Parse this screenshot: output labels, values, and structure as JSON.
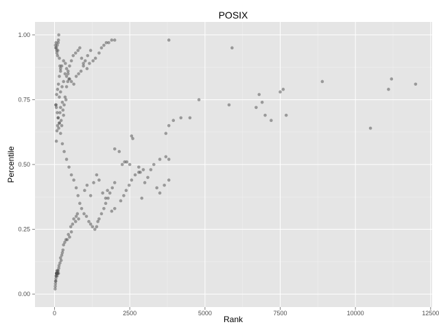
{
  "chart_data": {
    "type": "scatter",
    "title": "POSIX",
    "xlabel": "Rank",
    "ylabel": "Percentile",
    "xlim": [
      -650,
      12550
    ],
    "ylim": [
      -0.05,
      1.05
    ],
    "x_ticks": [
      0,
      2500,
      5000,
      7500,
      10000,
      12500
    ],
    "x_tick_labels": [
      "0",
      "2500",
      "5000",
      "7500",
      "10000",
      "12500"
    ],
    "y_ticks": [
      0.0,
      0.25,
      0.5,
      0.75,
      1.0
    ],
    "y_tick_labels": [
      "0.00",
      "0.25",
      "0.50",
      "0.75",
      "1.00"
    ],
    "grid": true,
    "legend": "none",
    "colors": {
      "panel": "#e5e5e5",
      "grid_major": "#ffffff",
      "grid_minor": "#f2f2f2",
      "point": "#4d4d4d"
    },
    "series": [
      {
        "x": [
          20,
          25,
          30,
          35,
          40,
          45,
          50,
          55,
          60,
          65,
          70,
          75,
          80,
          85,
          90,
          95,
          100,
          110,
          120,
          130,
          140,
          150,
          30,
          40,
          50,
          60,
          70,
          80,
          90,
          100,
          110,
          120,
          130,
          140,
          160,
          180,
          200,
          60,
          80,
          100,
          120,
          140,
          160,
          180,
          200,
          220,
          240,
          260,
          280,
          300,
          320,
          350,
          380,
          400,
          440,
          480,
          180,
          200,
          220,
          240,
          260,
          280,
          300,
          340,
          380,
          420,
          460,
          500,
          540,
          560,
          600,
          640,
          700,
          720,
          760,
          800,
          160,
          200,
          250,
          300,
          350,
          400,
          450,
          500,
          560,
          620,
          700,
          780,
          840,
          900,
          960,
          1020,
          1100,
          1200,
          50,
          70,
          100,
          130,
          160,
          200,
          240,
          300,
          360,
          400,
          450,
          500,
          560,
          640,
          720,
          800,
          880,
          960,
          1080,
          1160,
          1280,
          1360,
          1480,
          1560,
          1640,
          1720,
          1800,
          1900,
          2000,
          40,
          60,
          90,
          120,
          160,
          200,
          260,
          320,
          400,
          480,
          560,
          640,
          720,
          780,
          840,
          900,
          980,
          1060,
          1140,
          1200,
          1260,
          1340,
          1400,
          1440,
          1480,
          1560,
          1640,
          1700,
          1780,
          1840,
          1920,
          2000,
          1000,
          1080,
          1200,
          1300,
          1400,
          1480,
          1600,
          1700,
          1760,
          1900,
          2000,
          2200,
          2300,
          2380,
          2480,
          2560,
          2680,
          2800,
          2900,
          3000,
          3100,
          3200,
          3400,
          3500,
          3650,
          3800,
          2000,
          2150,
          2250,
          2330,
          2400,
          2500,
          2560,
          2600,
          2800,
          2850,
          2950,
          3300,
          3500,
          3700,
          3800,
          3700,
          3800,
          3950,
          4200,
          4500,
          4800,
          5800,
          6700,
          6800,
          6900,
          7000,
          7200,
          7500,
          7600,
          7700,
          3800,
          5900,
          8900,
          10500,
          11100,
          11200,
          12000
        ],
        "y": [
          0.02,
          0.03,
          0.04,
          0.05,
          0.05,
          0.06,
          0.07,
          0.07,
          0.08,
          0.08,
          0.08,
          0.08,
          0.09,
          0.07,
          0.08,
          0.08,
          0.09,
          0.08,
          0.09,
          0.08,
          0.1,
          0.11,
          0.96,
          0.95,
          0.97,
          0.95,
          0.94,
          0.93,
          0.96,
          0.92,
          0.94,
          0.97,
          0.98,
          1.0,
          0.91,
          0.88,
          0.87,
          0.59,
          0.63,
          0.65,
          0.68,
          0.64,
          0.66,
          0.7,
          0.72,
          0.67,
          0.65,
          0.74,
          0.71,
          0.69,
          0.73,
          0.76,
          0.75,
          0.8,
          0.82,
          0.83,
          0.12,
          0.14,
          0.13,
          0.15,
          0.16,
          0.17,
          0.19,
          0.2,
          0.21,
          0.21,
          0.23,
          0.22,
          0.26,
          0.24,
          0.27,
          0.29,
          0.28,
          0.3,
          0.31,
          0.29,
          0.76,
          0.78,
          0.8,
          0.82,
          0.85,
          0.84,
          0.86,
          0.88,
          0.9,
          0.92,
          0.93,
          0.94,
          0.95,
          0.91,
          0.89,
          0.9,
          0.92,
          0.94,
          0.73,
          0.77,
          0.79,
          0.81,
          0.84,
          0.86,
          0.88,
          0.9,
          0.89,
          0.87,
          0.85,
          0.83,
          0.82,
          0.81,
          0.84,
          0.85,
          0.86,
          0.88,
          0.87,
          0.89,
          0.9,
          0.91,
          0.93,
          0.95,
          0.96,
          0.97,
          0.97,
          0.98,
          0.98,
          0.73,
          0.72,
          0.7,
          0.68,
          0.66,
          0.62,
          0.58,
          0.55,
          0.52,
          0.49,
          0.46,
          0.44,
          0.41,
          0.38,
          0.35,
          0.33,
          0.31,
          0.3,
          0.28,
          0.27,
          0.26,
          0.25,
          0.26,
          0.28,
          0.29,
          0.31,
          0.33,
          0.35,
          0.37,
          0.39,
          0.41,
          0.43,
          0.4,
          0.42,
          0.38,
          0.43,
          0.46,
          0.44,
          0.39,
          0.37,
          0.4,
          0.32,
          0.33,
          0.36,
          0.38,
          0.4,
          0.42,
          0.44,
          0.46,
          0.47,
          0.37,
          0.43,
          0.45,
          0.48,
          0.41,
          0.39,
          0.42,
          0.44,
          0.56,
          0.55,
          0.5,
          0.51,
          0.51,
          0.5,
          0.61,
          0.6,
          0.49,
          0.47,
          0.48,
          0.5,
          0.52,
          0.53,
          0.52,
          0.62,
          0.65,
          0.67,
          0.68,
          0.68,
          0.75,
          0.73,
          0.72,
          0.77,
          0.74,
          0.69,
          0.67,
          0.78,
          0.79,
          0.69,
          0.98,
          0.95,
          0.82,
          0.64,
          0.79,
          0.83,
          0.81
        ]
      }
    ]
  }
}
